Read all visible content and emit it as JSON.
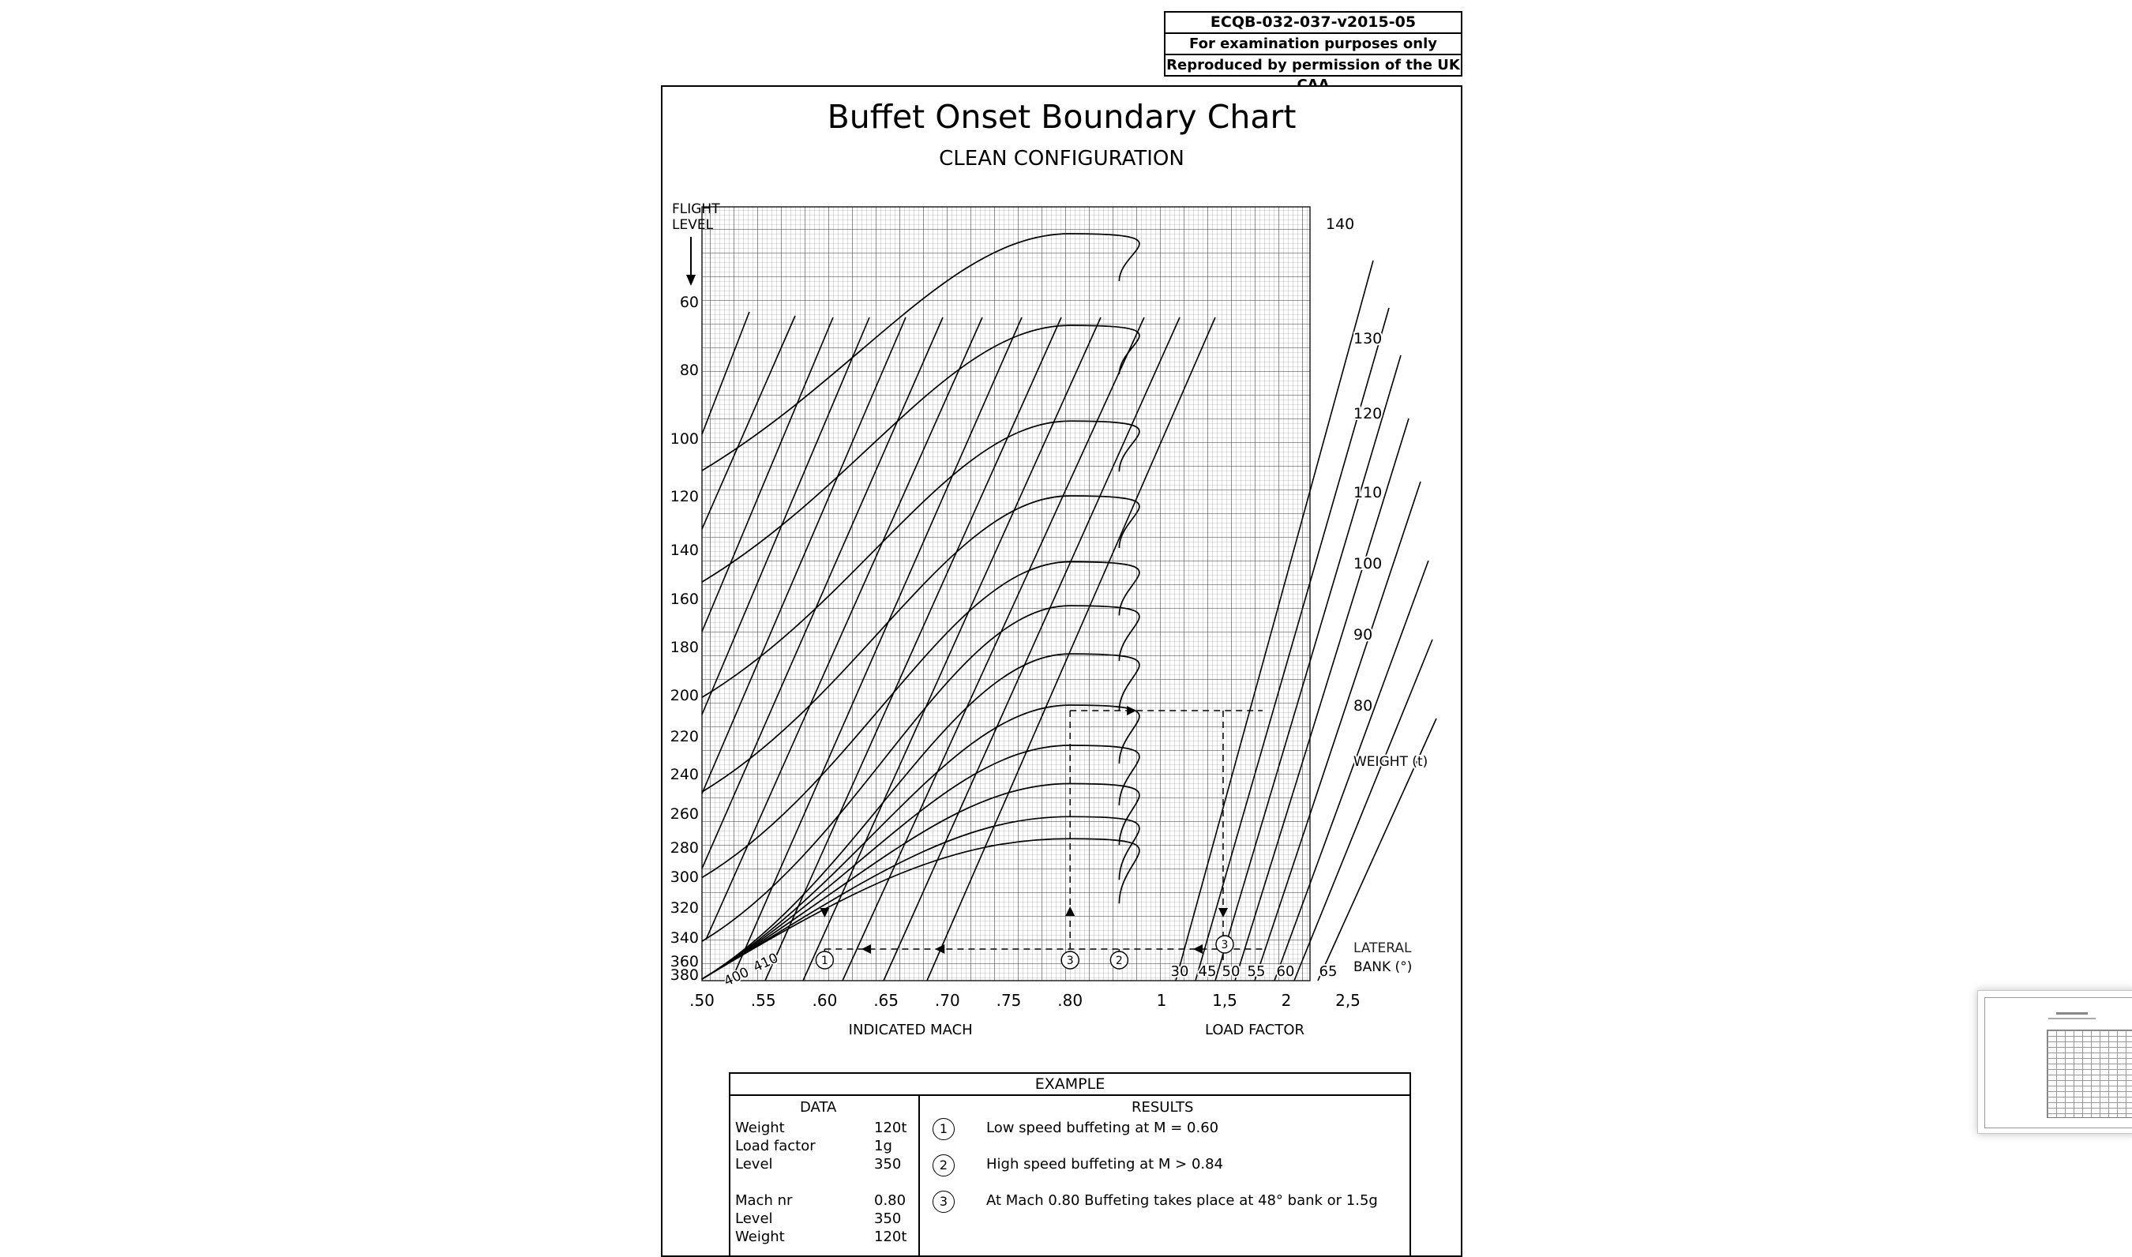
{
  "header_box": [
    "ECQB-032-037-v2015-05",
    "For examination purposes only",
    "Reproduced by permission of the UK CAA"
  ],
  "title": "Buffet Onset Boundary Chart",
  "subtitle": "CLEAN CONFIGURATION",
  "chart_data": {
    "type": "line",
    "title": "Buffet Onset Boundary Chart",
    "subtitle": "CLEAN CONFIGURATION",
    "flight_level_label": [
      "FLIGHT",
      "LEVEL"
    ],
    "flight_level_ticks": [
      "60",
      "80",
      "100",
      "120",
      "140",
      "160",
      "180",
      "200",
      "220",
      "240",
      "260",
      "280",
      "300",
      "320",
      "340",
      "360",
      "380"
    ],
    "mach_ticks": [
      ".50",
      ".55",
      ".60",
      ".65",
      ".70",
      ".75",
      ".80"
    ],
    "load_factor_ticks": [
      "1",
      "1,5",
      "2",
      "2,5"
    ],
    "bank_ticks": [
      "30",
      "45",
      "50",
      "55",
      "60",
      "65"
    ],
    "weight_ticks": [
      "80",
      "90",
      "100",
      "110",
      "120",
      "130",
      "140"
    ],
    "xlabel_mach": "INDICATED MACH",
    "xlabel_load": "LOAD FACTOR",
    "weight_label": "WEIGHT (t)",
    "bank_label": [
      "LATERAL",
      "BANK (°)"
    ],
    "bottom_curve_labels": [
      "400",
      "410"
    ],
    "markers": [
      "1",
      "2",
      "3"
    ],
    "mach_range": [
      0.5,
      0.84
    ],
    "buffet_peak_mach": 0.8,
    "buffet_peak_levels": [
      40,
      67,
      95,
      120,
      145,
      163,
      183,
      205,
      225,
      245,
      262,
      275
    ],
    "example_path": {
      "weight_t": 120,
      "load_factor_g": 1.5,
      "mach": 0.8,
      "level": 350
    }
  },
  "example": {
    "heading": "EXAMPLE",
    "data_heading": "DATA",
    "results_heading": "RESULTS",
    "data_rows": [
      {
        "label": "Weight",
        "value": "120t"
      },
      {
        "label": "Load factor",
        "value": "1g"
      },
      {
        "label": "Level",
        "value": "350"
      },
      {
        "label": "Mach nr",
        "value": "0.80"
      },
      {
        "label": "Level",
        "value": "350"
      },
      {
        "label": "Weight",
        "value": "120t"
      }
    ],
    "results": [
      {
        "num": "1",
        "text": "Low speed buffeting at M = 0.60"
      },
      {
        "num": "2",
        "text": "High speed buffeting at M > 0.84"
      },
      {
        "num": "3",
        "text": "At Mach 0.80 Buffeting takes place at 48° bank or 1.5g"
      }
    ]
  }
}
